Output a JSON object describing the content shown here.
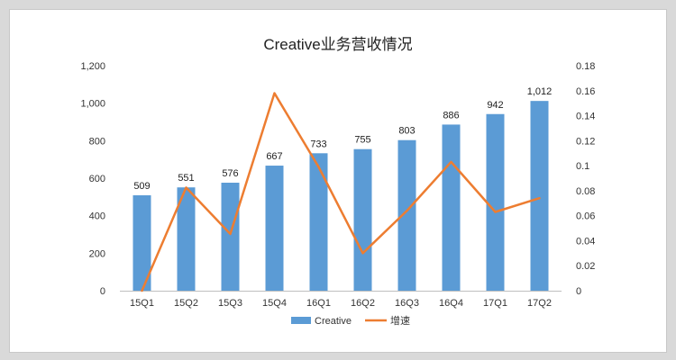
{
  "chart_data": {
    "type": "bar",
    "title": "Creative业务营收情况",
    "categories": [
      "15Q1",
      "15Q2",
      "15Q3",
      "15Q4",
      "16Q1",
      "16Q2",
      "16Q3",
      "16Q4",
      "17Q1",
      "17Q2"
    ],
    "series": [
      {
        "name": "Creative",
        "type": "bar",
        "axis": "left",
        "color": "#5b9bd5",
        "values": [
          509,
          551,
          576,
          667,
          733,
          755,
          803,
          886,
          942,
          1012
        ],
        "data_labels": [
          "509",
          "551",
          "576",
          "667",
          "733",
          "755",
          "803",
          "886",
          "942",
          "1,012"
        ]
      },
      {
        "name": "增速",
        "type": "line",
        "axis": "right",
        "color": "#ed7d31",
        "values": [
          0,
          0.0825,
          0.0454,
          0.158,
          0.099,
          0.03,
          0.064,
          0.103,
          0.063,
          0.074
        ]
      }
    ],
    "y_left": {
      "min": 0,
      "max": 1200,
      "ticks": [
        "0",
        "200",
        "400",
        "600",
        "800",
        "1,000",
        "1,200"
      ]
    },
    "y_right": {
      "min": 0,
      "max": 0.18,
      "ticks": [
        "0",
        "0.02",
        "0.04",
        "0.06",
        "0.08",
        "0.1",
        "0.12",
        "0.14",
        "0.16",
        "0.18"
      ]
    },
    "grid": false,
    "legend_position": "bottom"
  }
}
